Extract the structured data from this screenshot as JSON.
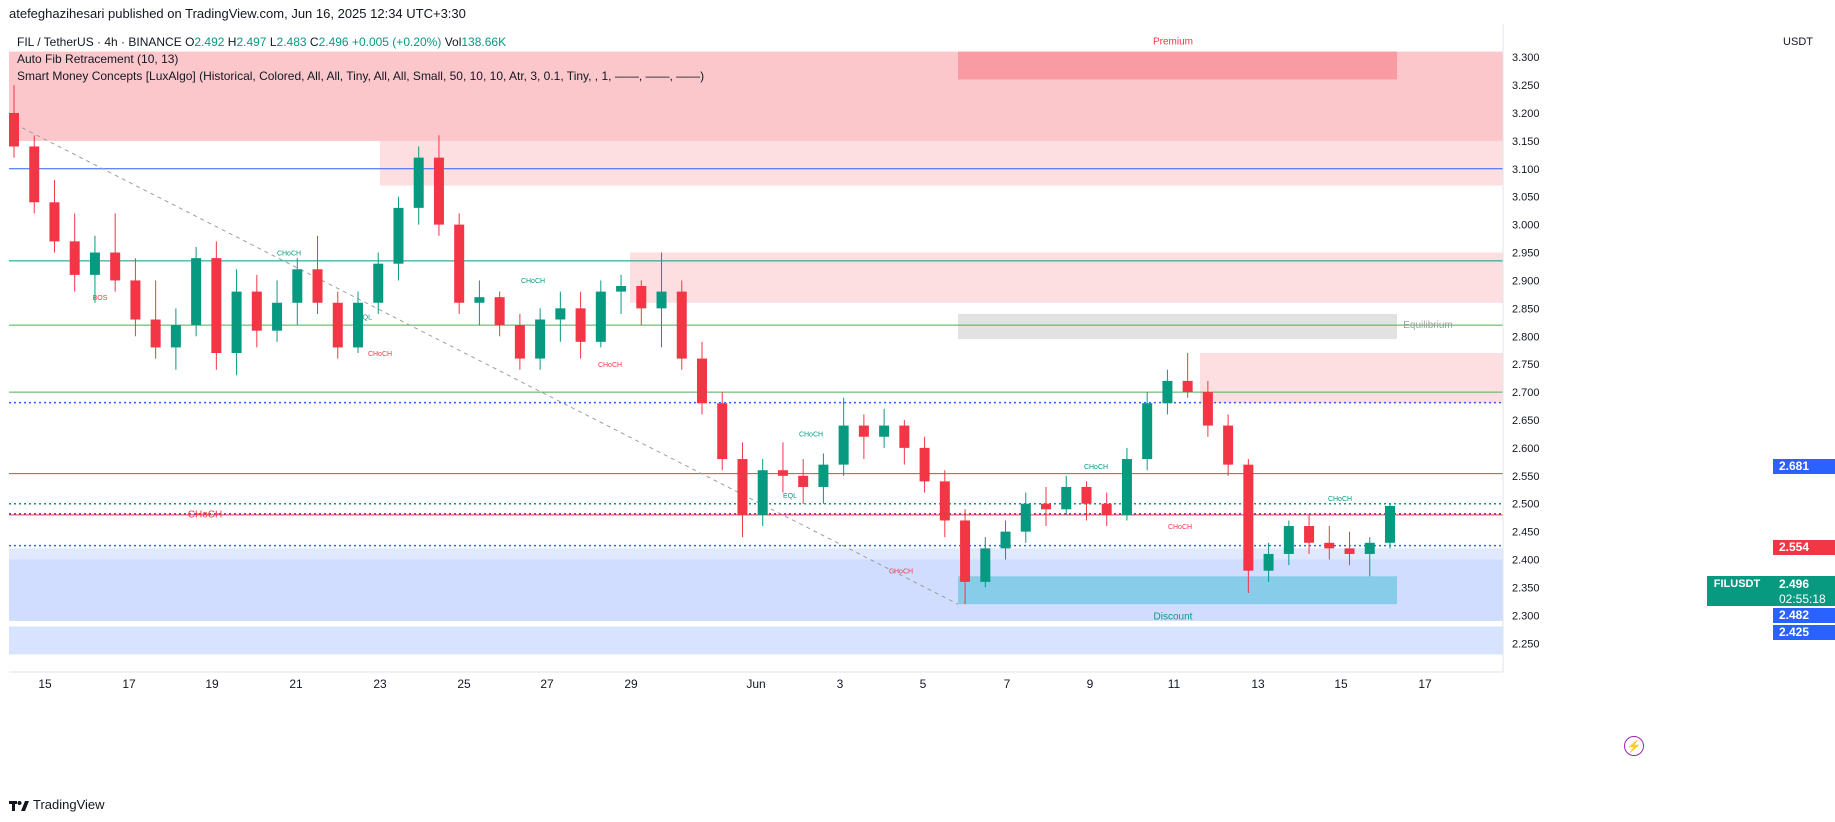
{
  "header": {
    "published": "atefeghazihesari published on TradingView.com, Jun 16, 2025 12:34 UTC+3:30"
  },
  "legend": {
    "symbol": "FIL / TetherUS · 4h · BINANCE",
    "open_label": "O",
    "open": "2.492",
    "high_label": "H",
    "high": "2.497",
    "low_label": "L",
    "low": "2.483",
    "close_label": "C",
    "close": "2.496",
    "change": "+0.005 (+0.20%)",
    "vol_label": "Vol",
    "volume": "138.66K",
    "fib": "Auto Fib Retracement (10, 13)",
    "smc": "Smart Money Concepts [LuxAlgo] (Historical, Colored, All, All, Tiny, All, All, Small, 50, 10, 10, Atr, 3, 0.1, Tiny, , 1, ——, ——, ——)"
  },
  "price_axis": {
    "currency": "USDT",
    "ticks": [
      "3.300",
      "3.250",
      "3.200",
      "3.150",
      "3.100",
      "3.050",
      "3.000",
      "2.950",
      "2.900",
      "2.850",
      "2.800",
      "2.750",
      "2.700",
      "2.650",
      "2.600",
      "2.550",
      "2.500",
      "2.450",
      "2.400",
      "2.350",
      "2.300",
      "2.250"
    ]
  },
  "time_axis": {
    "ticks": [
      "15",
      "17",
      "19",
      "21",
      "23",
      "25",
      "27",
      "29",
      "Jun",
      "3",
      "5",
      "7",
      "9",
      "11",
      "13",
      "15",
      "17"
    ]
  },
  "price_labels": {
    "fib_2681": "2.681",
    "fib_2554": "2.554",
    "symbol": "FILUSDT",
    "last": "2.496",
    "countdown": "02:55:18",
    "fib_2482": "2.482",
    "fib_2425": "2.425"
  },
  "zone_labels": {
    "premium": "Premium",
    "equilibrium": "Equilibrium",
    "discount": "Discount"
  },
  "structure_labels": [
    "CHoCH",
    "BOS",
    "EQL",
    "CHoCH",
    "CHoCH",
    "CHoCH",
    "CHoCH",
    "CHoCH",
    "EQL",
    "CHoCH",
    "CHoCH",
    "CHoCH",
    "CHoCH",
    "CHoCH"
  ],
  "footer": {
    "brand": "TradingView"
  },
  "colors": {
    "up": "#089981",
    "down": "#f23645",
    "premium": "#f23645",
    "discount": "#2962ff",
    "equilibrium": "#9e9e9e",
    "fib_blue": "#2962ff"
  },
  "chart_data": {
    "type": "candlestick",
    "symbol": "FIL / TetherUS",
    "interval": "4h",
    "exchange": "BINANCE",
    "ylim": [
      2.22,
      3.32
    ],
    "y_ticks": [
      2.25,
      2.3,
      2.35,
      2.4,
      2.45,
      2.5,
      2.55,
      2.6,
      2.65,
      2.7,
      2.75,
      2.8,
      2.85,
      2.9,
      2.95,
      3.0,
      3.05,
      3.1,
      3.15,
      3.2,
      3.25,
      3.3
    ],
    "x_labels": [
      "15",
      "17",
      "19",
      "21",
      "23",
      "25",
      "27",
      "29",
      "Jun",
      "3",
      "5",
      "7",
      "9",
      "11",
      "13",
      "15",
      "17"
    ],
    "candles_ohlc": [
      [
        3.2,
        3.25,
        3.12,
        3.14
      ],
      [
        3.14,
        3.16,
        3.02,
        3.04
      ],
      [
        3.04,
        3.08,
        2.95,
        2.97
      ],
      [
        2.97,
        3.02,
        2.88,
        2.91
      ],
      [
        2.91,
        2.98,
        2.86,
        2.95
      ],
      [
        2.95,
        3.02,
        2.88,
        2.9
      ],
      [
        2.9,
        2.94,
        2.8,
        2.83
      ],
      [
        2.83,
        2.9,
        2.76,
        2.78
      ],
      [
        2.78,
        2.85,
        2.74,
        2.82
      ],
      [
        2.82,
        2.96,
        2.8,
        2.94
      ],
      [
        2.94,
        2.97,
        2.74,
        2.77
      ],
      [
        2.77,
        2.92,
        2.73,
        2.88
      ],
      [
        2.88,
        2.91,
        2.78,
        2.81
      ],
      [
        2.81,
        2.9,
        2.79,
        2.86
      ],
      [
        2.86,
        2.94,
        2.82,
        2.92
      ],
      [
        2.92,
        2.98,
        2.84,
        2.86
      ],
      [
        2.86,
        2.88,
        2.76,
        2.78
      ],
      [
        2.78,
        2.88,
        2.77,
        2.86
      ],
      [
        2.86,
        2.95,
        2.84,
        2.93
      ],
      [
        2.93,
        3.05,
        2.9,
        3.03
      ],
      [
        3.03,
        3.14,
        3.0,
        3.12
      ],
      [
        3.12,
        3.16,
        2.98,
        3.0
      ],
      [
        3.0,
        3.02,
        2.84,
        2.86
      ],
      [
        2.86,
        2.9,
        2.82,
        2.87
      ],
      [
        2.87,
        2.88,
        2.8,
        2.82
      ],
      [
        2.82,
        2.84,
        2.74,
        2.76
      ],
      [
        2.76,
        2.85,
        2.74,
        2.83
      ],
      [
        2.83,
        2.88,
        2.79,
        2.85
      ],
      [
        2.85,
        2.88,
        2.76,
        2.79
      ],
      [
        2.79,
        2.9,
        2.78,
        2.88
      ],
      [
        2.88,
        2.91,
        2.84,
        2.89
      ],
      [
        2.89,
        2.9,
        2.82,
        2.85
      ],
      [
        2.85,
        2.95,
        2.78,
        2.88
      ],
      [
        2.88,
        2.9,
        2.74,
        2.76
      ],
      [
        2.76,
        2.79,
        2.66,
        2.68
      ],
      [
        2.68,
        2.7,
        2.56,
        2.58
      ],
      [
        2.58,
        2.61,
        2.44,
        2.48
      ],
      [
        2.48,
        2.58,
        2.46,
        2.56
      ],
      [
        2.56,
        2.61,
        2.52,
        2.55
      ],
      [
        2.55,
        2.58,
        2.5,
        2.53
      ],
      [
        2.53,
        2.59,
        2.5,
        2.57
      ],
      [
        2.57,
        2.69,
        2.55,
        2.64
      ],
      [
        2.64,
        2.66,
        2.58,
        2.62
      ],
      [
        2.62,
        2.67,
        2.6,
        2.64
      ],
      [
        2.64,
        2.65,
        2.57,
        2.6
      ],
      [
        2.6,
        2.62,
        2.52,
        2.54
      ],
      [
        2.54,
        2.56,
        2.44,
        2.47
      ],
      [
        2.47,
        2.49,
        2.32,
        2.36
      ],
      [
        2.36,
        2.44,
        2.35,
        2.42
      ],
      [
        2.42,
        2.47,
        2.4,
        2.45
      ],
      [
        2.45,
        2.52,
        2.43,
        2.5
      ],
      [
        2.5,
        2.53,
        2.46,
        2.49
      ],
      [
        2.49,
        2.55,
        2.48,
        2.53
      ],
      [
        2.53,
        2.54,
        2.47,
        2.5
      ],
      [
        2.5,
        2.52,
        2.46,
        2.48
      ],
      [
        2.48,
        2.6,
        2.47,
        2.58
      ],
      [
        2.58,
        2.7,
        2.56,
        2.68
      ],
      [
        2.68,
        2.74,
        2.66,
        2.72
      ],
      [
        2.72,
        2.77,
        2.69,
        2.7
      ],
      [
        2.7,
        2.72,
        2.62,
        2.64
      ],
      [
        2.64,
        2.66,
        2.55,
        2.57
      ],
      [
        2.57,
        2.58,
        2.34,
        2.38
      ],
      [
        2.38,
        2.43,
        2.36,
        2.41
      ],
      [
        2.41,
        2.47,
        2.39,
        2.46
      ],
      [
        2.46,
        2.48,
        2.41,
        2.43
      ],
      [
        2.43,
        2.46,
        2.4,
        2.42
      ],
      [
        2.42,
        2.45,
        2.39,
        2.41
      ],
      [
        2.41,
        2.44,
        2.37,
        2.43
      ],
      [
        2.43,
        2.5,
        2.42,
        2.496
      ]
    ],
    "horizontal_levels": [
      {
        "label": "",
        "value": 3.1,
        "color": "#2962ff"
      },
      {
        "label": "",
        "value": 2.935,
        "color": "#089981"
      },
      {
        "label": "",
        "value": 2.82,
        "color": "#4caf50"
      },
      {
        "label": "",
        "value": 2.7,
        "color": "#4caf50"
      },
      {
        "label": "2.681",
        "value": 2.681,
        "color": "#2962ff"
      },
      {
        "label": "2.554",
        "value": 2.554,
        "color": "#f23645"
      },
      {
        "label": "",
        "value": 2.5,
        "color": "#089981"
      },
      {
        "label": "2.482",
        "value": 2.482,
        "color": "#2962ff"
      },
      {
        "label": "",
        "value": 2.48,
        "color": "#f23645"
      },
      {
        "label": "2.425",
        "value": 2.425,
        "color": "#2962ff"
      }
    ],
    "zones": [
      {
        "label": "Premium",
        "from": 3.15,
        "to": 3.31
      },
      {
        "label": "Equilibrium",
        "from": 2.795,
        "to": 2.84
      },
      {
        "label": "Discount",
        "from": 2.29,
        "to": 2.4
      }
    ],
    "last_price": 2.496
  }
}
